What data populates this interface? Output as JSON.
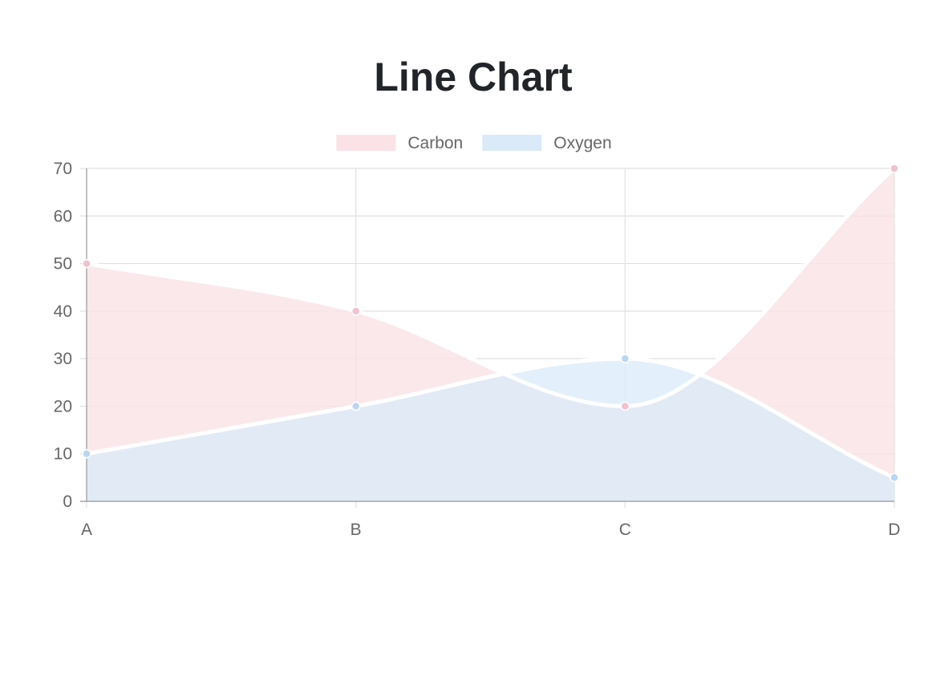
{
  "title": "Line Chart",
  "chart_data": {
    "type": "area",
    "title": "Line Chart",
    "categories": [
      "A",
      "B",
      "C",
      "D"
    ],
    "ylim": [
      0,
      70
    ],
    "yticks": [
      0,
      10,
      20,
      30,
      40,
      50,
      60,
      70
    ],
    "grid": true,
    "legend_position": "top",
    "series": [
      {
        "name": "Carbon",
        "values": [
          50,
          40,
          20,
          70
        ],
        "fill_color": "#fae2e6",
        "point_color": "#f3c1cb"
      },
      {
        "name": "Oxygen",
        "values": [
          10,
          20,
          30,
          5
        ],
        "fill_color": "#dbeaf9",
        "point_color": "#b9d6f4"
      }
    ]
  }
}
